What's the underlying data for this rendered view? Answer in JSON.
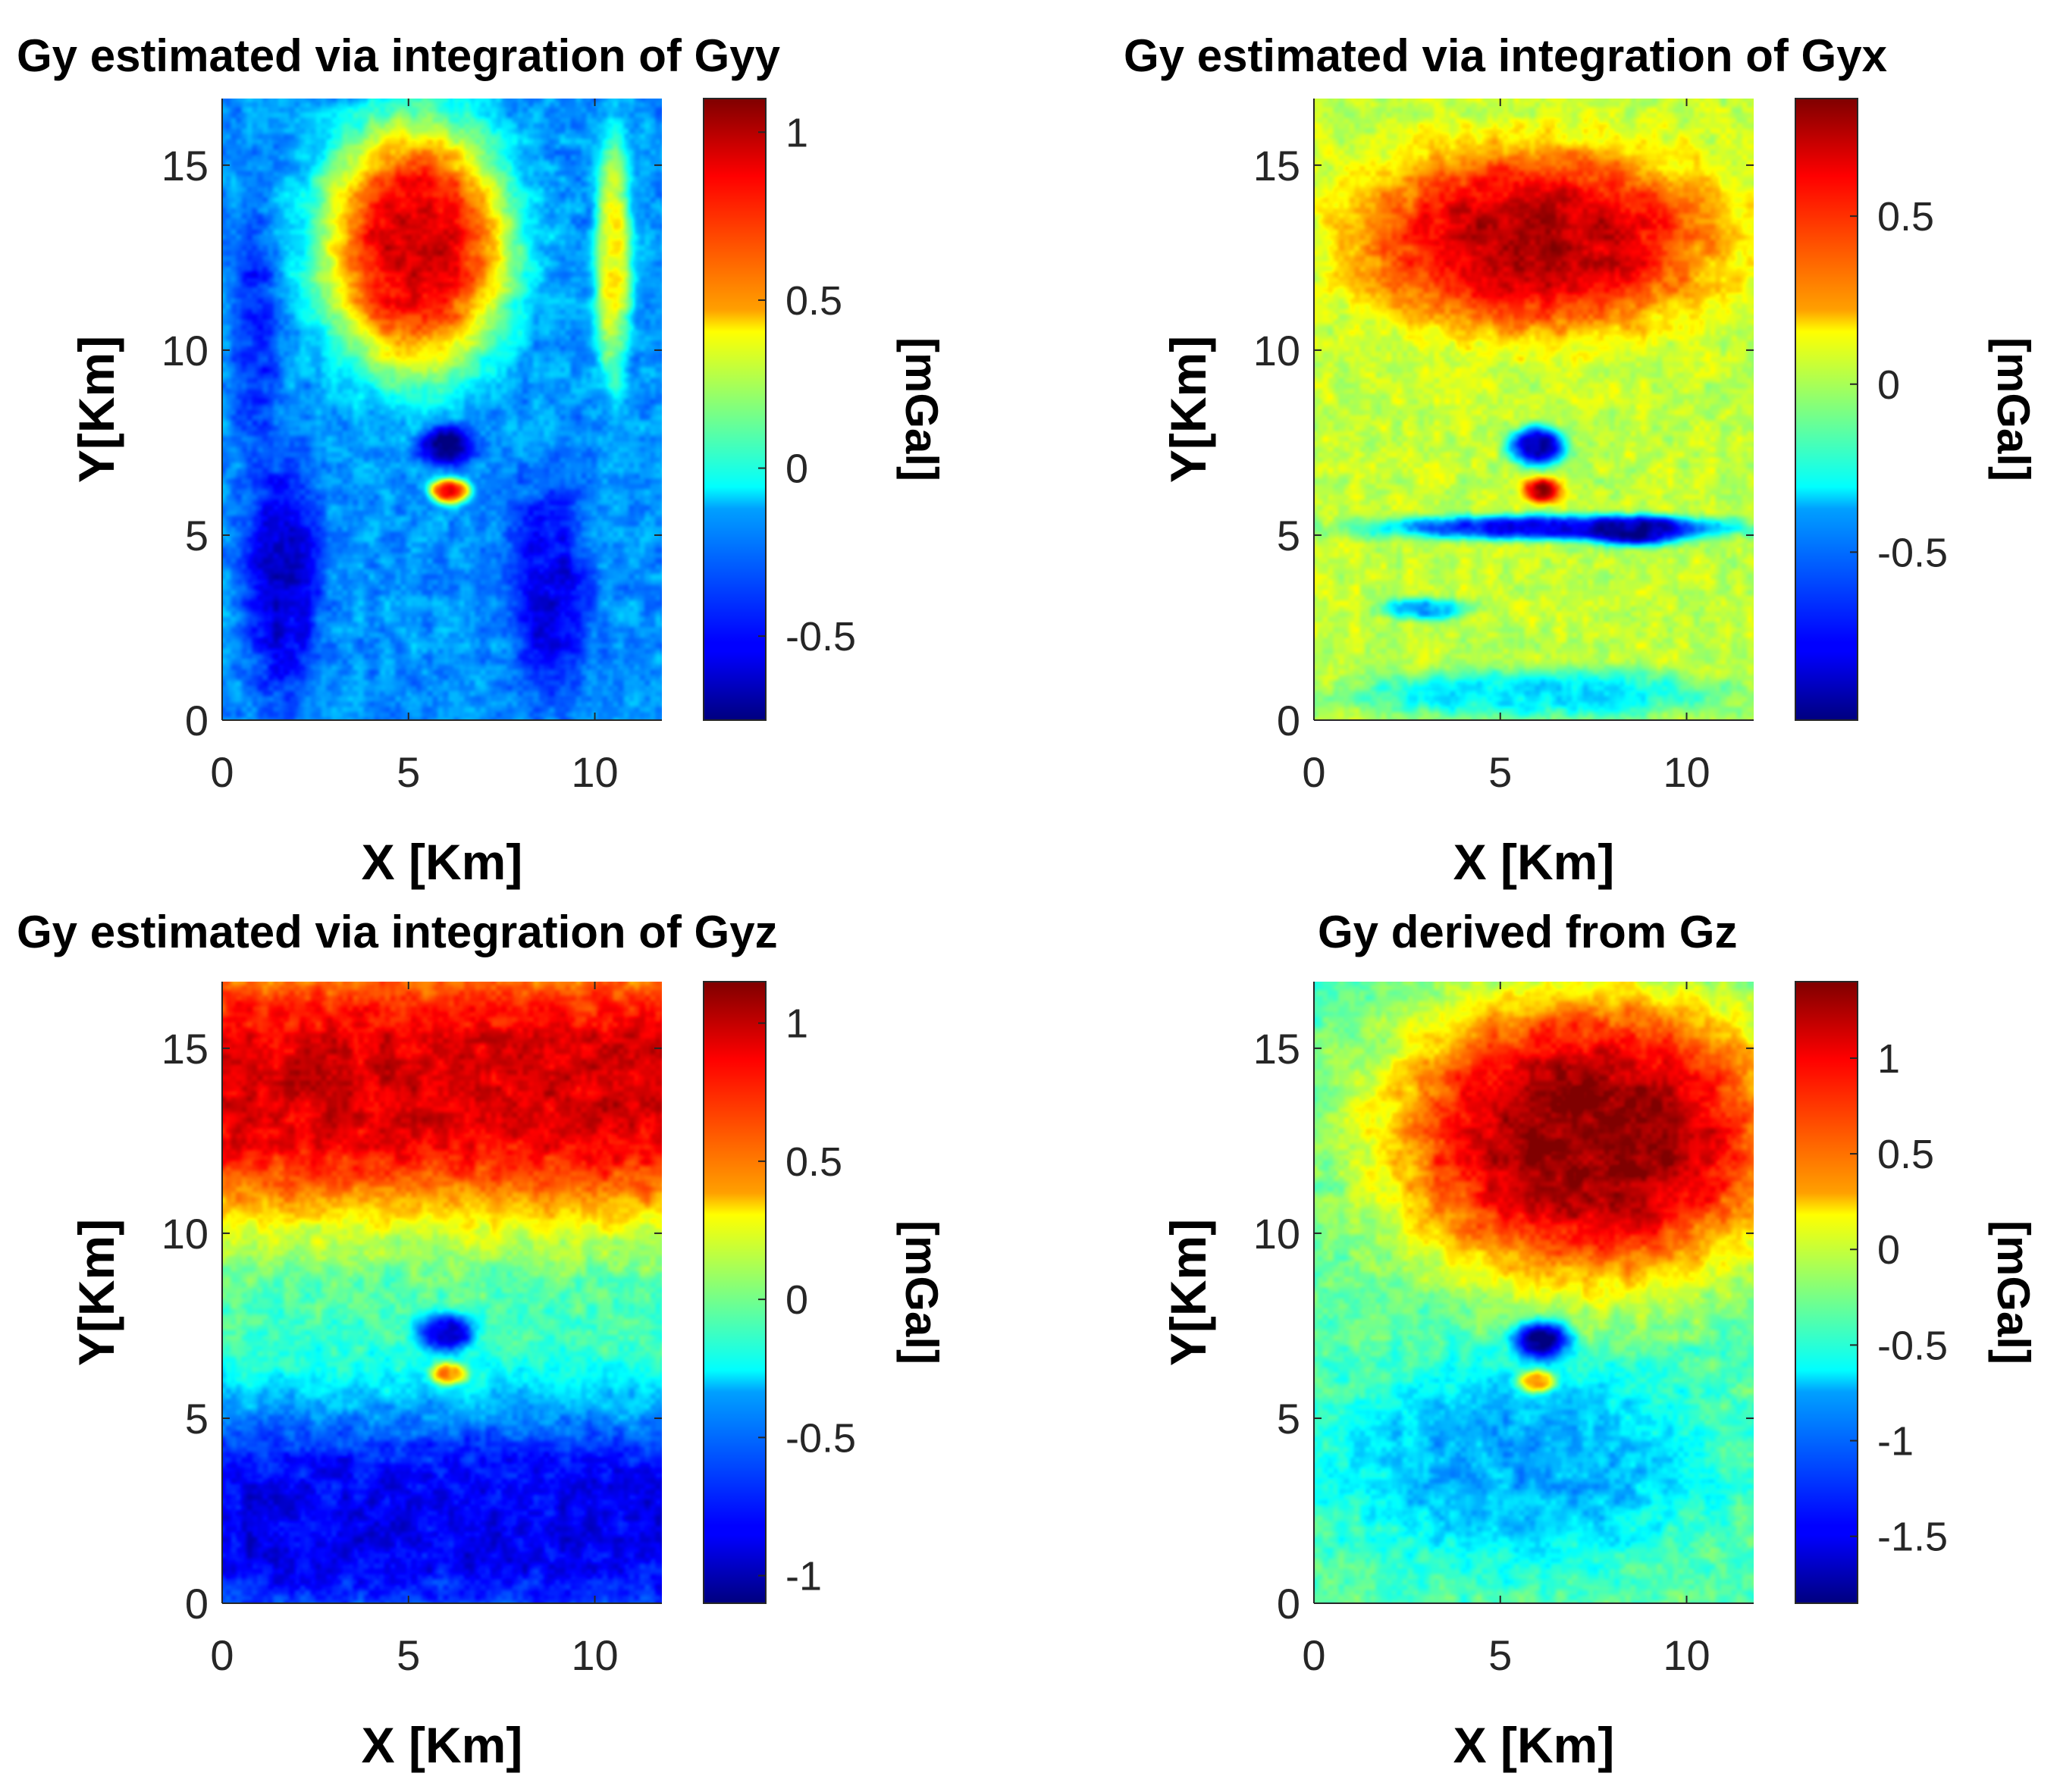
{
  "colors": {
    "jet": [
      "#00007f",
      "#0000ff",
      "#007fff",
      "#00ffff",
      "#7fff7f",
      "#ffff00",
      "#ff7f00",
      "#ff0000",
      "#7f0000"
    ],
    "axis": "#262626"
  },
  "chart_data": [
    {
      "type": "heatmap",
      "title": "Gy estimated via integration of Gyy",
      "xlabel": "X [Km]",
      "ylabel": "Y[Km]",
      "xlim": [
        0,
        11.8
      ],
      "ylim": [
        0,
        16.8
      ],
      "xticks": [
        0,
        5,
        10
      ],
      "yticks": [
        0,
        5,
        10,
        15
      ],
      "colorbar": {
        "label": "[mGal]",
        "clim": [
          -0.75,
          1.1
        ],
        "ticks": [
          -0.5,
          0,
          0.5,
          1
        ],
        "tick_labels": [
          "-0.5",
          "0",
          "0.5",
          "1"
        ]
      },
      "background": -0.25,
      "features": [
        {
          "kind": "blob",
          "x": 5.2,
          "y": 12.8,
          "rx": 2.6,
          "ry": 3.5,
          "value": 0.95
        },
        {
          "kind": "blob",
          "x": 10.5,
          "y": 12.5,
          "rx": 0.5,
          "ry": 3.5,
          "value": 0.4
        },
        {
          "kind": "blob",
          "x": 1.6,
          "y": 3.8,
          "rx": 1.0,
          "ry": 3.3,
          "value": -0.6
        },
        {
          "kind": "blob",
          "x": 8.8,
          "y": 3.5,
          "rx": 1.1,
          "ry": 3.0,
          "value": -0.55
        },
        {
          "kind": "blob",
          "x": 0.9,
          "y": 10.5,
          "rx": 0.6,
          "ry": 3.5,
          "value": -0.45
        },
        {
          "kind": "blob",
          "x": 6.0,
          "y": 7.4,
          "rx": 0.75,
          "ry": 0.55,
          "value": -0.7
        },
        {
          "kind": "blob",
          "x": 6.1,
          "y": 6.2,
          "rx": 0.55,
          "ry": 0.35,
          "value": 0.95
        }
      ]
    },
    {
      "type": "heatmap",
      "title": "Gy estimated via integration of Gyx",
      "xlabel": "X [Km]",
      "ylabel": "Y[Km]",
      "xlim": [
        0,
        11.8
      ],
      "ylim": [
        0,
        16.8
      ],
      "xticks": [
        0,
        5,
        10
      ],
      "yticks": [
        0,
        5,
        10,
        15
      ],
      "colorbar": {
        "label": "[mGal]",
        "clim": [
          -1.0,
          0.85
        ],
        "ticks": [
          -0.5,
          0,
          0.5
        ],
        "tick_labels": [
          "-0.5",
          "0",
          "0.5"
        ]
      },
      "background": 0.05,
      "features": [
        {
          "kind": "blob",
          "x": 6.0,
          "y": 13.0,
          "rx": 4.8,
          "ry": 2.5,
          "value": 0.75
        },
        {
          "kind": "blob",
          "x": 6.5,
          "y": 5.2,
          "rx": 4.8,
          "ry": 0.35,
          "value": -0.8
        },
        {
          "kind": "blob",
          "x": 8.7,
          "y": 5.1,
          "rx": 1.3,
          "ry": 0.4,
          "value": -0.95
        },
        {
          "kind": "blob",
          "x": 6.0,
          "y": 0.7,
          "rx": 5.0,
          "ry": 0.7,
          "value": -0.35
        },
        {
          "kind": "blob",
          "x": 3.0,
          "y": 3.0,
          "rx": 1.2,
          "ry": 0.3,
          "value": -0.45
        },
        {
          "kind": "blob",
          "x": 6.0,
          "y": 7.4,
          "rx": 0.75,
          "ry": 0.55,
          "value": -0.95
        },
        {
          "kind": "blob",
          "x": 6.1,
          "y": 6.2,
          "rx": 0.5,
          "ry": 0.35,
          "value": 0.8
        }
      ]
    },
    {
      "type": "heatmap",
      "title": "Gy estimated via integration of Gyz",
      "xlabel": "X [Km]",
      "ylabel": "Y[Km]",
      "xlim": [
        0,
        11.8
      ],
      "ylim": [
        0,
        16.8
      ],
      "xticks": [
        0,
        5,
        10
      ],
      "yticks": [
        0,
        5,
        10,
        15
      ],
      "colorbar": {
        "label": "[mGal]",
        "clim": [
          -1.1,
          1.15
        ],
        "ticks": [
          -1,
          -0.5,
          0,
          0.5,
          1
        ],
        "tick_labels": [
          "-1",
          "-0.5",
          "0",
          "0.5",
          "1"
        ]
      },
      "background": -0.1,
      "features": [
        {
          "kind": "band",
          "y": 14.0,
          "half": 3.8,
          "value": 0.95
        },
        {
          "kind": "band",
          "y": 2.2,
          "half": 3.4,
          "value": -0.85
        },
        {
          "kind": "blob",
          "x": 6.0,
          "y": 7.3,
          "rx": 0.75,
          "ry": 0.55,
          "value": -0.95
        },
        {
          "kind": "blob",
          "x": 6.1,
          "y": 6.2,
          "rx": 0.5,
          "ry": 0.3,
          "value": 0.6
        }
      ]
    },
    {
      "type": "heatmap",
      "title": "Gy derived from Gz",
      "xlabel": "X [Km]",
      "ylabel": "Y[Km]",
      "xlim": [
        0,
        11.8
      ],
      "ylim": [
        0,
        16.8
      ],
      "xticks": [
        0,
        5,
        10
      ],
      "yticks": [
        0,
        5,
        10,
        15
      ],
      "colorbar": {
        "label": "[mGal]",
        "clim": [
          -1.85,
          1.4
        ],
        "ticks": [
          -1.5,
          -1,
          -0.5,
          0,
          0.5,
          1
        ],
        "tick_labels": [
          "-1.5",
          "-1",
          "-0.5",
          "0",
          "0.5",
          "1"
        ]
      },
      "background": -0.35,
      "features": [
        {
          "kind": "blob",
          "x": 7.4,
          "y": 12.6,
          "rx": 5.5,
          "ry": 4.0,
          "value": 1.35
        },
        {
          "kind": "blob",
          "x": 5.5,
          "y": 3.8,
          "rx": 5.0,
          "ry": 2.8,
          "value": -0.9
        },
        {
          "kind": "blob",
          "x": 6.1,
          "y": 7.1,
          "rx": 0.75,
          "ry": 0.55,
          "value": -1.8
        },
        {
          "kind": "blob",
          "x": 6.0,
          "y": 6.0,
          "rx": 0.5,
          "ry": 0.3,
          "value": 0.55
        }
      ]
    }
  ]
}
